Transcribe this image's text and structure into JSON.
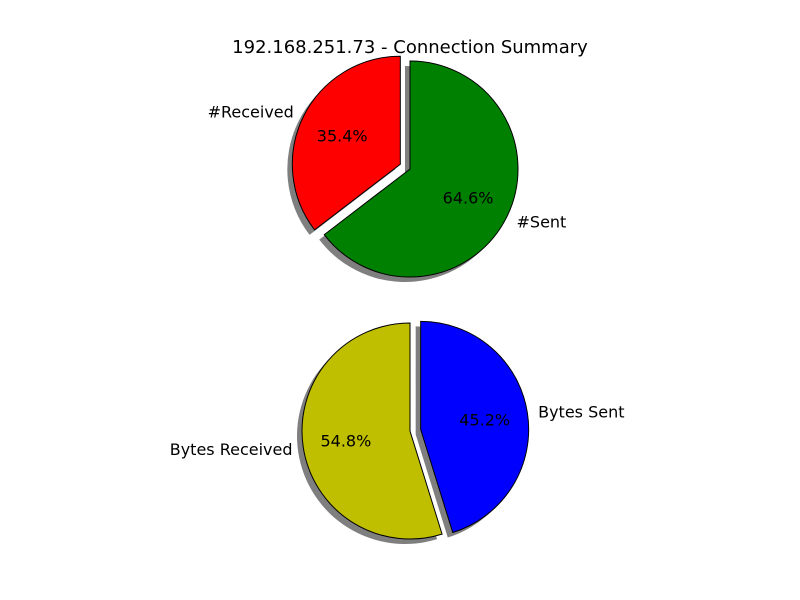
{
  "chart_data": [
    {
      "type": "pie",
      "title": "192.168.251.73 - Connection Summary",
      "slices": [
        {
          "label": "#Received",
          "value": 35.4,
          "pct_label": "35.4%",
          "color": "#ff0000",
          "exploded": true
        },
        {
          "label": "#Sent",
          "value": 64.6,
          "pct_label": "64.6%",
          "color": "#008000",
          "exploded": false
        }
      ],
      "start_angle_deg": 90,
      "shadow": true
    },
    {
      "type": "pie",
      "title": "",
      "slices": [
        {
          "label": "Bytes Received",
          "value": 54.8,
          "pct_label": "54.8%",
          "color": "#bfbf00",
          "exploded": false
        },
        {
          "label": "Bytes Sent",
          "value": 45.2,
          "pct_label": "45.2%",
          "color": "#0000ff",
          "exploded": true
        }
      ],
      "start_angle_deg": 90,
      "shadow": true
    }
  ]
}
